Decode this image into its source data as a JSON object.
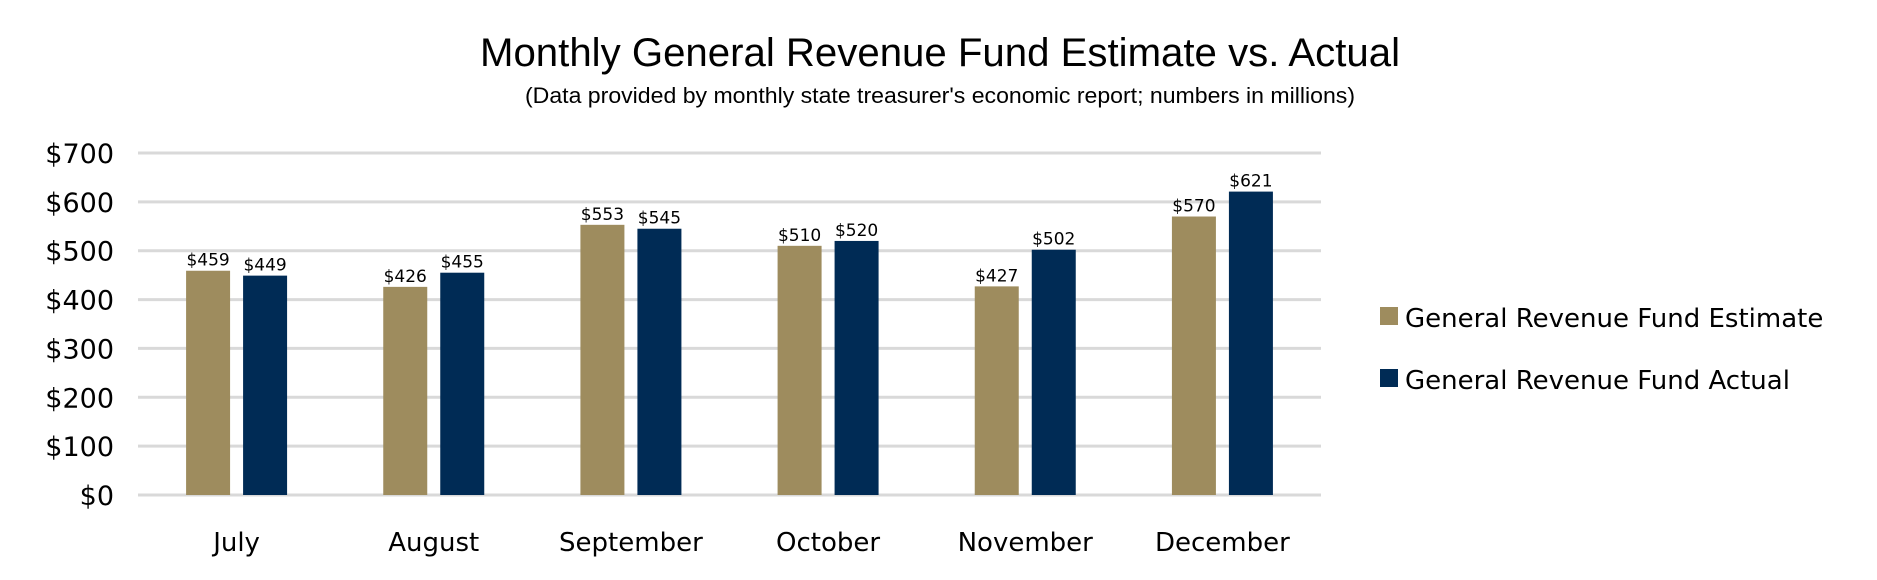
{
  "chart_data": {
    "type": "bar",
    "title": "Monthly General Revenue Fund Estimate vs. Actual",
    "subtitle": "(Data provided by monthly state treasurer's economic report; numbers in millions)",
    "categories": [
      "July",
      "August",
      "September",
      "October",
      "November",
      "December"
    ],
    "series": [
      {
        "name": "General Revenue Fund Estimate",
        "color": "#9E8C5E",
        "values": [
          459,
          426,
          553,
          510,
          427,
          570
        ],
        "labels": [
          "$459",
          "$426",
          "$553",
          "$510",
          "$427",
          "$570"
        ]
      },
      {
        "name": "General Revenue Fund Actual",
        "color": "#002B55",
        "values": [
          449,
          455,
          545,
          520,
          502,
          621
        ],
        "labels": [
          "$449",
          "$455",
          "$545",
          "$520",
          "$502",
          "$621"
        ]
      }
    ],
    "ylim": [
      0,
      700
    ],
    "yticks": [
      0,
      100,
      200,
      300,
      400,
      500,
      600,
      700
    ],
    "ytick_labels": [
      "$0",
      "$100",
      "$200",
      "$300",
      "$400",
      "$500",
      "$600",
      "$700"
    ],
    "grid": true,
    "gridline_color": "#D9D9D9",
    "legend_position": "right",
    "xlabel": "",
    "ylabel": ""
  }
}
